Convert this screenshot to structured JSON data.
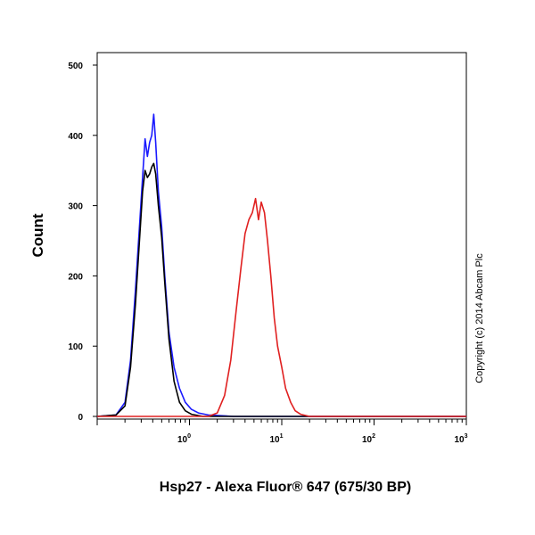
{
  "chart_data": {
    "type": "line",
    "xlabel": "Hsp27 - Alexa Fluor® 647 (675/30 BP)",
    "ylabel": "Count",
    "xscale": "log",
    "xlim": [
      0.1,
      1000
    ],
    "ylim": [
      0,
      500
    ],
    "x_ticks": [
      {
        "value": 1,
        "base": "10",
        "exp": "0"
      },
      {
        "value": 10,
        "base": "10",
        "exp": "1"
      },
      {
        "value": 100,
        "base": "10",
        "exp": "2"
      },
      {
        "value": 1000,
        "base": "10",
        "exp": "3"
      }
    ],
    "y_ticks": [
      0,
      100,
      200,
      300,
      400,
      500
    ],
    "grid": false,
    "legend": "none",
    "annotation": "Copyright (c) 2014 Abcam Plc",
    "series": [
      {
        "color": "#1a1aff",
        "points": [
          [
            0.1,
            0
          ],
          [
            0.16,
            2
          ],
          [
            0.2,
            20
          ],
          [
            0.23,
            80
          ],
          [
            0.26,
            180
          ],
          [
            0.29,
            280
          ],
          [
            0.31,
            340
          ],
          [
            0.33,
            395
          ],
          [
            0.35,
            370
          ],
          [
            0.37,
            390
          ],
          [
            0.39,
            400
          ],
          [
            0.41,
            430
          ],
          [
            0.43,
            390
          ],
          [
            0.46,
            320
          ],
          [
            0.5,
            270
          ],
          [
            0.54,
            200
          ],
          [
            0.6,
            120
          ],
          [
            0.68,
            70
          ],
          [
            0.78,
            40
          ],
          [
            0.9,
            20
          ],
          [
            1.05,
            10
          ],
          [
            1.25,
            5
          ],
          [
            1.6,
            2
          ],
          [
            3,
            0
          ],
          [
            1000,
            0
          ]
        ]
      },
      {
        "color": "#000000",
        "points": [
          [
            0.1,
            0
          ],
          [
            0.16,
            2
          ],
          [
            0.2,
            15
          ],
          [
            0.23,
            70
          ],
          [
            0.26,
            160
          ],
          [
            0.29,
            260
          ],
          [
            0.31,
            320
          ],
          [
            0.33,
            350
          ],
          [
            0.35,
            340
          ],
          [
            0.37,
            345
          ],
          [
            0.39,
            355
          ],
          [
            0.41,
            360
          ],
          [
            0.43,
            345
          ],
          [
            0.46,
            300
          ],
          [
            0.5,
            255
          ],
          [
            0.54,
            190
          ],
          [
            0.6,
            110
          ],
          [
            0.68,
            50
          ],
          [
            0.78,
            20
          ],
          [
            0.9,
            8
          ],
          [
            1.05,
            3
          ],
          [
            1.4,
            0
          ],
          [
            1000,
            0
          ]
        ]
      },
      {
        "color": "#e02020",
        "points": [
          [
            0.1,
            0
          ],
          [
            1.6,
            0
          ],
          [
            2.0,
            5
          ],
          [
            2.4,
            30
          ],
          [
            2.8,
            80
          ],
          [
            3.2,
            150
          ],
          [
            3.6,
            210
          ],
          [
            4.0,
            260
          ],
          [
            4.4,
            280
          ],
          [
            4.8,
            290
          ],
          [
            5.2,
            310
          ],
          [
            5.6,
            280
          ],
          [
            6.0,
            305
          ],
          [
            6.5,
            290
          ],
          [
            7.0,
            250
          ],
          [
            7.6,
            200
          ],
          [
            8.3,
            140
          ],
          [
            9.0,
            100
          ],
          [
            10.0,
            70
          ],
          [
            11.0,
            40
          ],
          [
            12.5,
            20
          ],
          [
            14.0,
            8
          ],
          [
            16.0,
            3
          ],
          [
            20.0,
            0
          ],
          [
            1000,
            0
          ]
        ]
      }
    ]
  }
}
